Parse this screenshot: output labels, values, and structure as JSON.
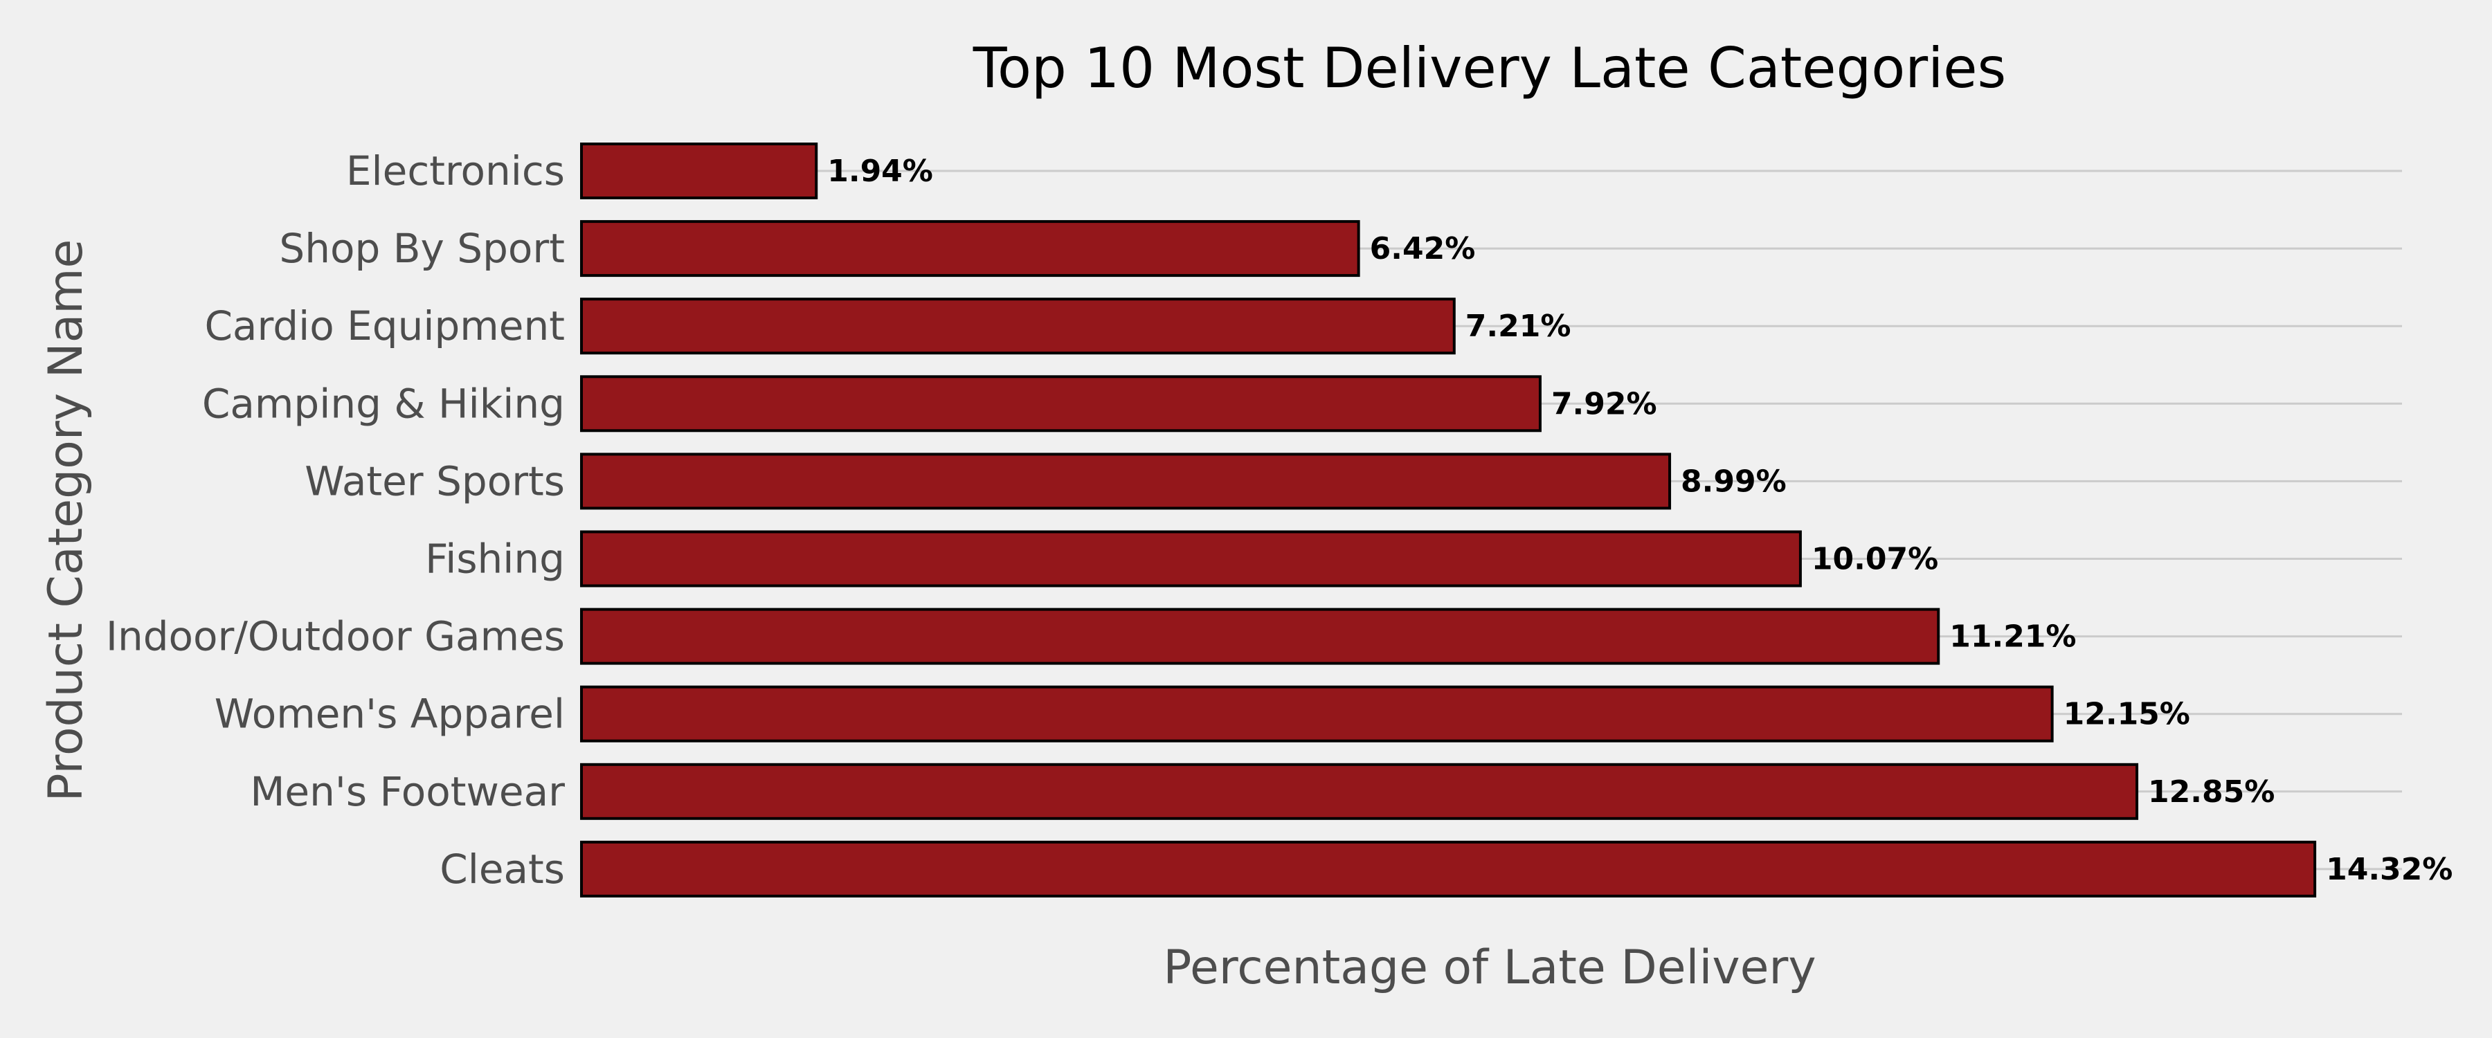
{
  "chart_data": {
    "type": "bar",
    "orientation": "horizontal",
    "title": "Top 10 Most Delivery Late Categories",
    "xlabel": "Percentage of Late Delivery",
    "ylabel": "Product Category Name",
    "categories": [
      "Electronics",
      "Shop By Sport",
      "Cardio Equipment",
      "Camping & Hiking",
      "Water Sports",
      "Fishing",
      "Indoor/Outdoor Games",
      "Women's Apparel",
      "Men's Footwear",
      "Cleats"
    ],
    "values": [
      1.94,
      6.42,
      7.21,
      7.92,
      8.99,
      10.07,
      11.21,
      12.15,
      12.85,
      14.32
    ],
    "value_labels": [
      "1.94%",
      "6.42%",
      "7.21%",
      "7.92%",
      "8.99%",
      "10.07%",
      "11.21%",
      "12.15%",
      "12.85%",
      "14.32%"
    ],
    "xlim": [
      0,
      15.04
    ],
    "grid": "horizontal",
    "x_ticks_visible": false,
    "colors": {
      "bar": "#94171b",
      "bar_edge": "#000000",
      "background": "#f0f0f0",
      "grid": "#cbcbcb"
    }
  }
}
